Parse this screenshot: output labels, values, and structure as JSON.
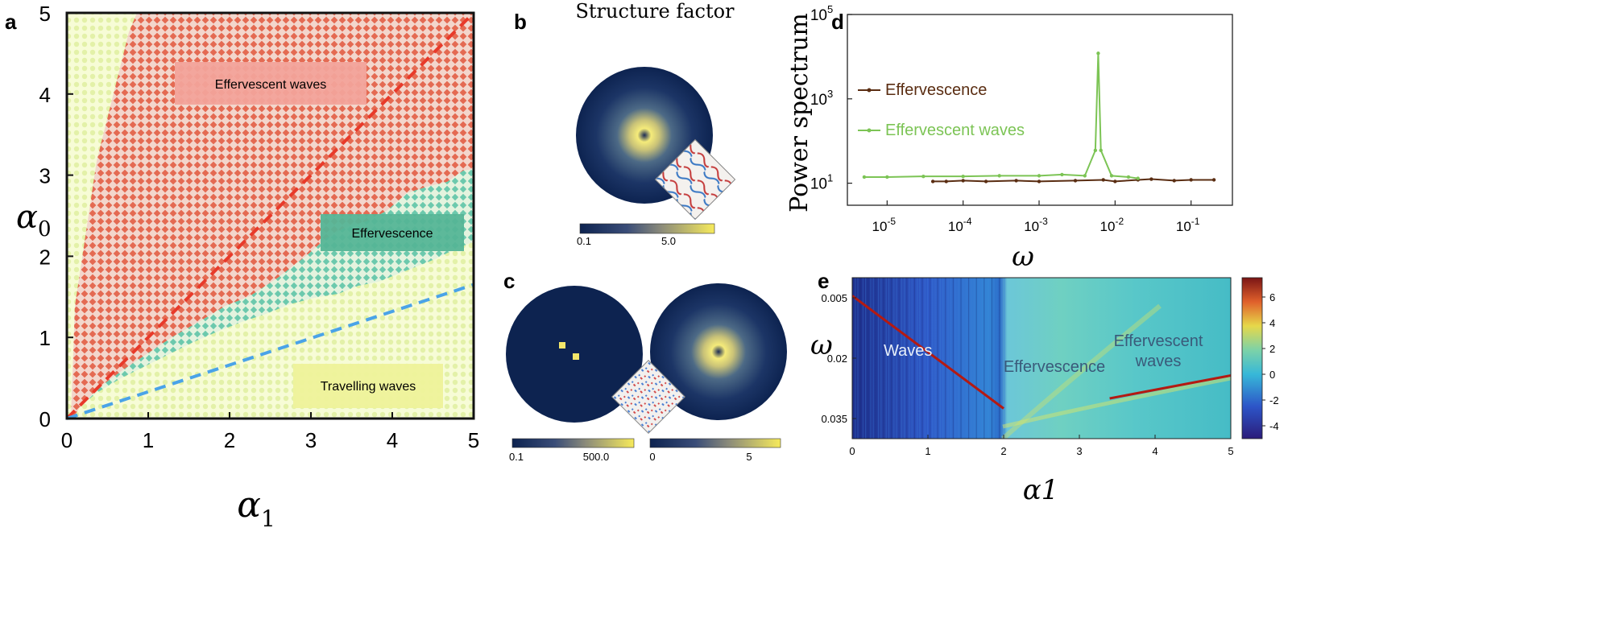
{
  "panel_labels": {
    "a": "a",
    "b": "b",
    "c": "c",
    "d": "d",
    "e": "e"
  },
  "colors": {
    "effervescent_waves": "#e8705a",
    "effervescence": "#5fbfa5",
    "travelling_waves": "#f3fbc8",
    "red_line": "#e83a2a",
    "blue_line": "#4aa3e8",
    "spectrum_brown": "#5a2d12",
    "spectrum_green": "#7cc455"
  },
  "panel_b": {
    "title": "Structure factor",
    "colorbar_ticks": [
      "0.1",
      "5.0"
    ]
  },
  "panel_c": {
    "colorbar_left_ticks": [
      "0.1",
      "500.0"
    ],
    "colorbar_right_ticks": [
      "0",
      "5"
    ]
  },
  "chart_data": [
    {
      "id": "a",
      "type": "scatter",
      "title": "",
      "xlabel": "α1",
      "ylabel": "α0",
      "xlim": [
        0,
        5
      ],
      "ylim": [
        0,
        5
      ],
      "xticks": [
        "0",
        "1",
        "2",
        "3",
        "4",
        "5"
      ],
      "yticks": [
        "0",
        "1",
        "2",
        "3",
        "4",
        "5"
      ],
      "regions": [
        {
          "name": "Effervescent waves",
          "label": "Effervescent waves"
        },
        {
          "name": "Effervescence",
          "label": "Effervescence"
        },
        {
          "name": "Travelling waves",
          "label": "Travelling waves"
        }
      ],
      "lines": [
        {
          "name": "red-dashed",
          "points": [
            [
              0,
              0
            ],
            [
              5,
              5
            ]
          ]
        },
        {
          "name": "blue-dashed",
          "points": [
            [
              0,
              0
            ],
            [
              5,
              1.65
            ]
          ]
        }
      ]
    },
    {
      "id": "d",
      "type": "line",
      "xlabel": "ω",
      "ylabel": "Power spectrum",
      "xscale": "log",
      "yscale": "log",
      "xlim": [
        3e-06,
        0.35
      ],
      "ylim": [
        3,
        100000
      ],
      "xticks": [
        {
          "v": 1e-05,
          "base": "10",
          "exp": "-5"
        },
        {
          "v": 0.0001,
          "base": "10",
          "exp": "-4"
        },
        {
          "v": 0.001,
          "base": "10",
          "exp": "-3"
        },
        {
          "v": 0.01,
          "base": "10",
          "exp": "-2"
        },
        {
          "v": 0.1,
          "base": "10",
          "exp": "-1"
        }
      ],
      "yticks": [
        {
          "v": 10,
          "base": "10",
          "exp": "1"
        },
        {
          "v": 1000,
          "base": "10",
          "exp": "3"
        },
        {
          "v": 100000,
          "base": "10",
          "exp": "5"
        }
      ],
      "legend_position": "top-left",
      "series": [
        {
          "name": "Effervescence",
          "x": [
            4e-05,
            6e-05,
            0.0001,
            0.0002,
            0.0005,
            0.001,
            0.003,
            0.007,
            0.01,
            0.02,
            0.03,
            0.06,
            0.1,
            0.2
          ],
          "y": [
            11,
            11,
            11.5,
            11,
            11.5,
            11,
            11.5,
            12,
            11,
            12,
            12.5,
            11.5,
            12,
            12
          ]
        },
        {
          "name": "Effervescent waves",
          "x": [
            5e-06,
            1e-05,
            3e-05,
            0.0001,
            0.0003,
            0.001,
            0.002,
            0.004,
            0.0055,
            0.006,
            0.0065,
            0.009,
            0.015,
            0.02
          ],
          "y": [
            14,
            14,
            14.5,
            14.5,
            15,
            15,
            16,
            15,
            60,
            12000,
            60,
            15,
            14,
            13
          ]
        }
      ]
    },
    {
      "id": "e",
      "type": "heatmap",
      "xlabel": "α1",
      "ylabel": "ω",
      "xlim": [
        0,
        5
      ],
      "ylim": [
        0,
        0.04
      ],
      "xticks": [
        "0",
        "1",
        "2",
        "3",
        "4",
        "5"
      ],
      "yticks": [
        {
          "label": "0.005",
          "v": 0.005
        },
        {
          "label": "0.02",
          "v": 0.02
        },
        {
          "label": "0.035",
          "v": 0.035
        }
      ],
      "colorbar_ticks": [
        {
          "label": "6",
          "v": 6
        },
        {
          "label": "4",
          "v": 4
        },
        {
          "label": "2",
          "v": 2
        },
        {
          "label": "0",
          "v": 0
        },
        {
          "label": "-2",
          "v": -2
        },
        {
          "label": "-4",
          "v": -4
        }
      ],
      "colorbar_range": [
        -5,
        7.5
      ],
      "region_labels": [
        "Waves",
        "Effervescence",
        "Effervescent",
        "waves"
      ],
      "red_line_segments": [
        {
          "name": "waves-branch",
          "points": [
            [
              0,
              0.0045
            ],
            [
              2.0,
              0.0325
            ]
          ]
        },
        {
          "name": "effervescent-waves-branch",
          "points": [
            [
              3.4,
              0.03
            ],
            [
              5,
              0.0243
            ]
          ]
        }
      ]
    }
  ]
}
